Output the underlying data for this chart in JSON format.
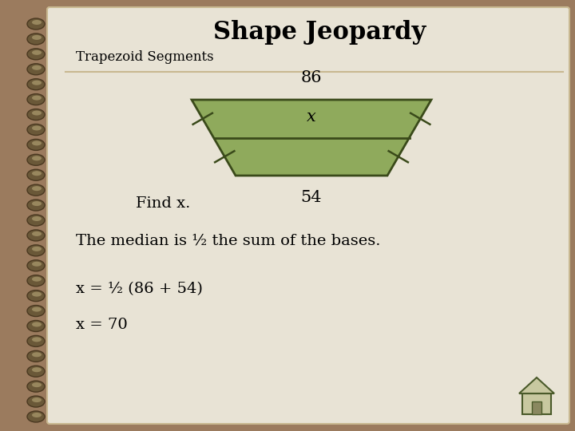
{
  "title": "Shape Jeopardy",
  "subtitle": "Trapezoid Segments",
  "top_base_label": "86",
  "median_label": "x",
  "bottom_base_label": "54",
  "find_text": "Find x.",
  "explanation": "The median is ½ the sum of the bases.",
  "equation1": "x = ½ (86 + 54)",
  "equation2": "x = 70",
  "bg_outer": "#9b7b5e",
  "bg_paper": "#e8e3d5",
  "trapezoid_fill": "#8faa5c",
  "trapezoid_edge": "#3a4a1a",
  "separator_color": "#c8b890",
  "title_fontsize": 22,
  "subtitle_fontsize": 12,
  "label_fontsize": 15,
  "text_fontsize": 14,
  "spiral_color": "#7a6848",
  "spiral_highlight": "#d4c8a8"
}
